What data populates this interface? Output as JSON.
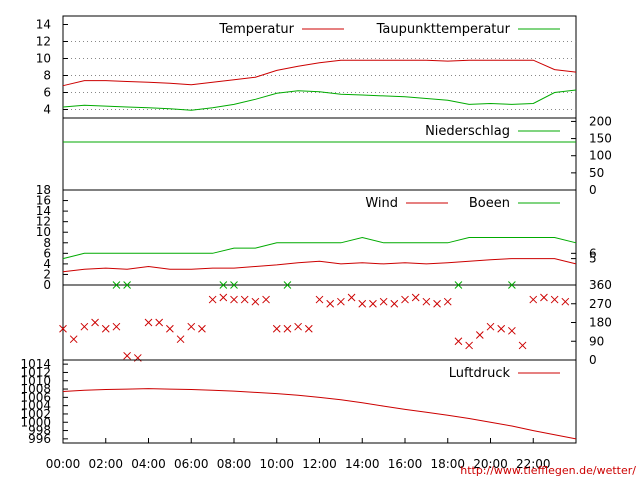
{
  "colors": {
    "red": "#cc0000",
    "green": "#00aa00",
    "grid": "#888888",
    "frame": "#000000"
  },
  "x_axis": {
    "range": [
      "00:00",
      "24:00"
    ],
    "ticks": [
      "00:00",
      "02:00",
      "04:00",
      "06:00",
      "08:00",
      "10:00",
      "12:00",
      "14:00",
      "16:00",
      "18:00",
      "20:00",
      "22:00"
    ]
  },
  "credit": "http://www.tiefflegen.de/wetter/",
  "chart_data": [
    {
      "id": "temperature",
      "type": "line",
      "yaxis_side": "left",
      "ylim": [
        3,
        15
      ],
      "y_ticks": [
        4,
        6,
        8,
        10,
        12,
        14
      ],
      "grid": "dotted",
      "legend_position": "top-right",
      "x": [
        "00:00",
        "01:00",
        "02:00",
        "03:00",
        "04:00",
        "05:00",
        "06:00",
        "07:00",
        "08:00",
        "09:00",
        "10:00",
        "11:00",
        "12:00",
        "13:00",
        "14:00",
        "15:00",
        "16:00",
        "17:00",
        "18:00",
        "19:00",
        "20:00",
        "21:00",
        "22:00",
        "23:00",
        "24:00"
      ],
      "series": [
        {
          "name": "Temperatur",
          "color": "red",
          "values": [
            6.8,
            7.4,
            7.4,
            7.3,
            7.2,
            7.1,
            6.9,
            7.2,
            7.5,
            7.8,
            8.6,
            9.1,
            9.5,
            9.8,
            9.8,
            9.8,
            9.8,
            9.8,
            9.7,
            9.8,
            9.8,
            9.8,
            9.8,
            8.7,
            8.4
          ]
        },
        {
          "name": "Taupunkttemperatur",
          "color": "green",
          "values": [
            4.3,
            4.5,
            4.4,
            4.3,
            4.2,
            4.1,
            3.9,
            4.2,
            4.6,
            5.2,
            5.9,
            6.2,
            6.1,
            5.8,
            5.7,
            5.6,
            5.5,
            5.3,
            5.1,
            4.6,
            4.7,
            4.6,
            4.7,
            6.0,
            6.3
          ]
        }
      ]
    },
    {
      "id": "precipitation",
      "type": "line",
      "yaxis_side": "right",
      "ylim": [
        0,
        210
      ],
      "y_ticks": [
        0,
        50,
        100,
        150,
        200
      ],
      "legend_position": "top-right",
      "x": [
        "00:00",
        "24:00"
      ],
      "series": [
        {
          "name": "Niederschlag",
          "color": "green",
          "values": [
            140,
            140
          ]
        }
      ]
    },
    {
      "id": "wind",
      "type": "line",
      "ylim": [
        0,
        18
      ],
      "y_ticks_left": [
        0,
        2,
        4,
        6,
        8,
        10,
        12,
        14,
        16,
        18
      ],
      "y_ticks_right": [
        5,
        6
      ],
      "legend_position": "top-right",
      "x": [
        "00:00",
        "01:00",
        "02:00",
        "03:00",
        "04:00",
        "05:00",
        "06:00",
        "07:00",
        "08:00",
        "09:00",
        "10:00",
        "11:00",
        "12:00",
        "13:00",
        "14:00",
        "15:00",
        "16:00",
        "17:00",
        "18:00",
        "19:00",
        "20:00",
        "21:00",
        "22:00",
        "23:00",
        "24:00"
      ],
      "series": [
        {
          "name": "Wind",
          "color": "red",
          "values": [
            2.5,
            3.0,
            3.2,
            3.0,
            3.5,
            3.0,
            3.0,
            3.2,
            3.2,
            3.5,
            3.8,
            4.2,
            4.5,
            4.0,
            4.2,
            4.0,
            4.2,
            4.0,
            4.2,
            4.5,
            4.8,
            5.0,
            5.0,
            5.0,
            4.0
          ]
        },
        {
          "name": "Boeen",
          "color": "green",
          "values": [
            5,
            6,
            6,
            6,
            6,
            6,
            6,
            6,
            7,
            7,
            8,
            8,
            8,
            8,
            9,
            8,
            8,
            8,
            8,
            9,
            9,
            9,
            9,
            9,
            8
          ]
        }
      ]
    },
    {
      "id": "wind-direction",
      "type": "scatter",
      "yaxis_side": "right",
      "ylim": [
        0,
        360
      ],
      "y_ticks": [
        0,
        90,
        180,
        270,
        360
      ],
      "x": [
        "00:00",
        "00:30",
        "01:00",
        "01:30",
        "02:00",
        "02:30",
        "03:00",
        "03:30",
        "04:00",
        "04:30",
        "05:00",
        "05:30",
        "06:00",
        "06:30",
        "07:00",
        "07:30",
        "08:00",
        "08:30",
        "09:00",
        "09:30",
        "10:00",
        "10:30",
        "11:00",
        "11:30",
        "12:00",
        "12:30",
        "13:00",
        "13:30",
        "14:00",
        "14:30",
        "15:00",
        "15:30",
        "16:00",
        "16:30",
        "17:00",
        "17:30",
        "18:00",
        "18:30",
        "19:00",
        "19:30",
        "20:00",
        "20:30",
        "21:00",
        "21:30",
        "22:00",
        "22:30",
        "23:00",
        "23:30"
      ],
      "series": [
        {
          "name": "",
          "color": "red",
          "values": [
            150,
            100,
            160,
            180,
            150,
            160,
            20,
            10,
            180,
            180,
            150,
            100,
            160,
            150,
            290,
            300,
            290,
            290,
            280,
            290,
            150,
            150,
            160,
            150,
            290,
            270,
            280,
            300,
            270,
            270,
            280,
            270,
            290,
            300,
            280,
            270,
            280,
            90,
            70,
            120,
            160,
            150,
            140,
            70,
            290,
            300,
            290,
            280
          ]
        },
        {
          "name": "",
          "color": "green",
          "values": [
            null,
            null,
            null,
            null,
            null,
            360,
            360,
            null,
            null,
            null,
            null,
            null,
            null,
            null,
            null,
            360,
            360,
            null,
            null,
            null,
            null,
            360,
            null,
            null,
            null,
            null,
            null,
            null,
            null,
            null,
            null,
            null,
            null,
            null,
            null,
            null,
            null,
            360,
            null,
            null,
            null,
            null,
            360,
            null,
            null,
            null,
            null,
            null
          ]
        }
      ]
    },
    {
      "id": "pressure",
      "type": "line",
      "yaxis_side": "left",
      "ylim": [
        995,
        1015
      ],
      "y_ticks": [
        996,
        998,
        1000,
        1002,
        1004,
        1006,
        1008,
        1010,
        1012,
        1014
      ],
      "legend_position": "top-right",
      "x": [
        "00:00",
        "01:00",
        "02:00",
        "03:00",
        "04:00",
        "05:00",
        "06:00",
        "07:00",
        "08:00",
        "09:00",
        "10:00",
        "11:00",
        "12:00",
        "13:00",
        "14:00",
        "15:00",
        "16:00",
        "17:00",
        "18:00",
        "19:00",
        "20:00",
        "21:00",
        "22:00",
        "23:00",
        "24:00"
      ],
      "series": [
        {
          "name": "Luftdruck",
          "color": "red",
          "values": [
            1007.4,
            1007.7,
            1007.9,
            1008.0,
            1008.1,
            1008.0,
            1007.9,
            1007.7,
            1007.5,
            1007.2,
            1006.9,
            1006.5,
            1006.0,
            1005.4,
            1004.7,
            1003.9,
            1003.1,
            1002.4,
            1001.7,
            1000.9,
            1000.0,
            999.1,
            998.0,
            997.0,
            996.0
          ]
        }
      ]
    }
  ]
}
